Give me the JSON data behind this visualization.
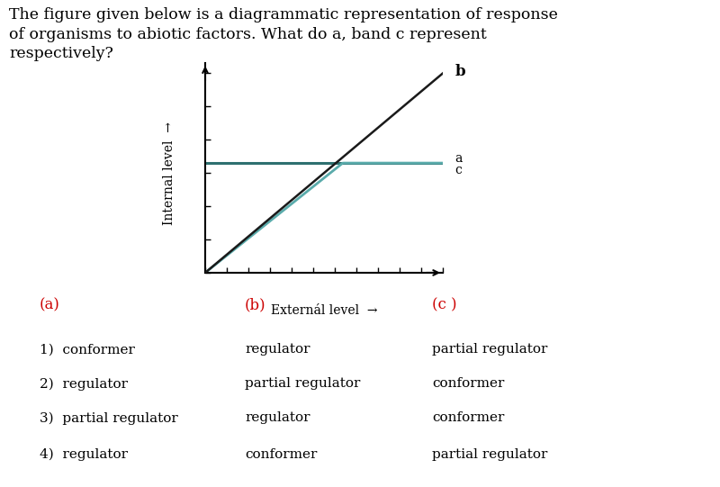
{
  "title_line1": "The figure given below is a diagrammatic representation of response",
  "title_line2": "of organisms to abiotic factors. What do a, band c represent",
  "title_line3": "respectively?",
  "title_fontsize": 12.5,
  "xlabel": "Externál level",
  "ylabel": "Internal level",
  "graph_label_b": "b",
  "graph_label_a": "a",
  "graph_label_c": "c",
  "line_b_color": "#1a1a1a",
  "line_a_color": "#2e7070",
  "line_c_color": "#5aabab",
  "options_header_color": "#cc0000",
  "col_a_header": "(a)",
  "col_b_header": "(b)",
  "col_c_header": "(c )",
  "rows": [
    [
      "1)  conformer",
      "regulator",
      "partial regulator"
    ],
    [
      "2)  regulator",
      "partial regulator",
      "conformer"
    ],
    [
      "3)  partial regulator",
      "regulator",
      "conformer"
    ],
    [
      "4)  regulator",
      "conformer",
      "partial regulator"
    ]
  ],
  "bg_color": "#ffffff"
}
